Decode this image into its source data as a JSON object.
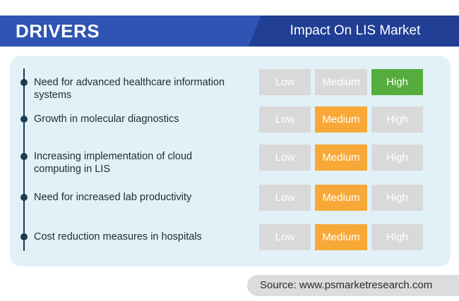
{
  "header": {
    "title": "DRIVERS",
    "impact_title": "Impact On LIS Market"
  },
  "levels": [
    "Low",
    "Medium",
    "High"
  ],
  "drivers": [
    {
      "text": "Need for advanced healthcare information systems",
      "impact": "High"
    },
    {
      "text": "Growth in molecular diagnostics",
      "impact": "Medium"
    },
    {
      "text": "Increasing implementation of cloud computing in LIS",
      "impact": "Medium"
    },
    {
      "text": "Need for increased lab productivity",
      "impact": "Medium"
    },
    {
      "text": "Cost reduction measures in hospitals",
      "impact": "Medium"
    }
  ],
  "source": "Source: www.psmarketresearch.com",
  "colors": {
    "header_blue": "#2f54b3",
    "header_dark_blue": "#1f3e94",
    "panel_bg": "#e2f1f7",
    "inactive": "#d9d9d9",
    "medium": "#f7a837",
    "high": "#56ad3d"
  }
}
